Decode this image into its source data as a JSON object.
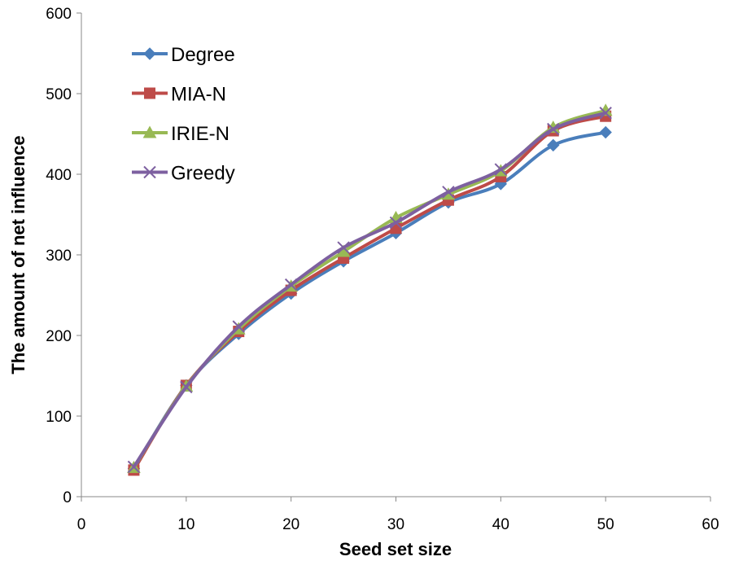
{
  "chart_data": {
    "type": "line",
    "title": "",
    "xlabel": "Seed set size",
    "ylabel": "The amount of net influence",
    "xlim": [
      0,
      60
    ],
    "ylim": [
      0,
      600
    ],
    "x_ticks": [
      "0",
      "10",
      "20",
      "30",
      "40",
      "50",
      "60"
    ],
    "y_ticks": [
      "0",
      "100",
      "200",
      "300",
      "400",
      "500",
      "600"
    ],
    "grid": false,
    "smooth": true,
    "legend_position": "top-left",
    "x": [
      5,
      10,
      15,
      20,
      25,
      30,
      35,
      40,
      45,
      50
    ],
    "series": [
      {
        "name": "Degree",
        "color": "#4a7ebb",
        "marker": "diamond",
        "values": [
          35,
          138,
          202,
          252,
          292,
          327,
          365,
          388,
          436,
          452
        ]
      },
      {
        "name": "MIA-N",
        "color": "#be4b48",
        "marker": "square",
        "values": [
          33,
          138,
          205,
          256,
          296,
          333,
          368,
          397,
          454,
          472
        ]
      },
      {
        "name": "IRIE-N",
        "color": "#98b954",
        "marker": "triangle",
        "values": [
          36,
          137,
          208,
          261,
          304,
          346,
          375,
          404,
          458,
          479
        ]
      },
      {
        "name": "Greedy",
        "color": "#7d60a0",
        "marker": "x",
        "values": [
          37,
          136,
          211,
          263,
          309,
          340,
          378,
          406,
          456,
          476
        ]
      }
    ]
  }
}
